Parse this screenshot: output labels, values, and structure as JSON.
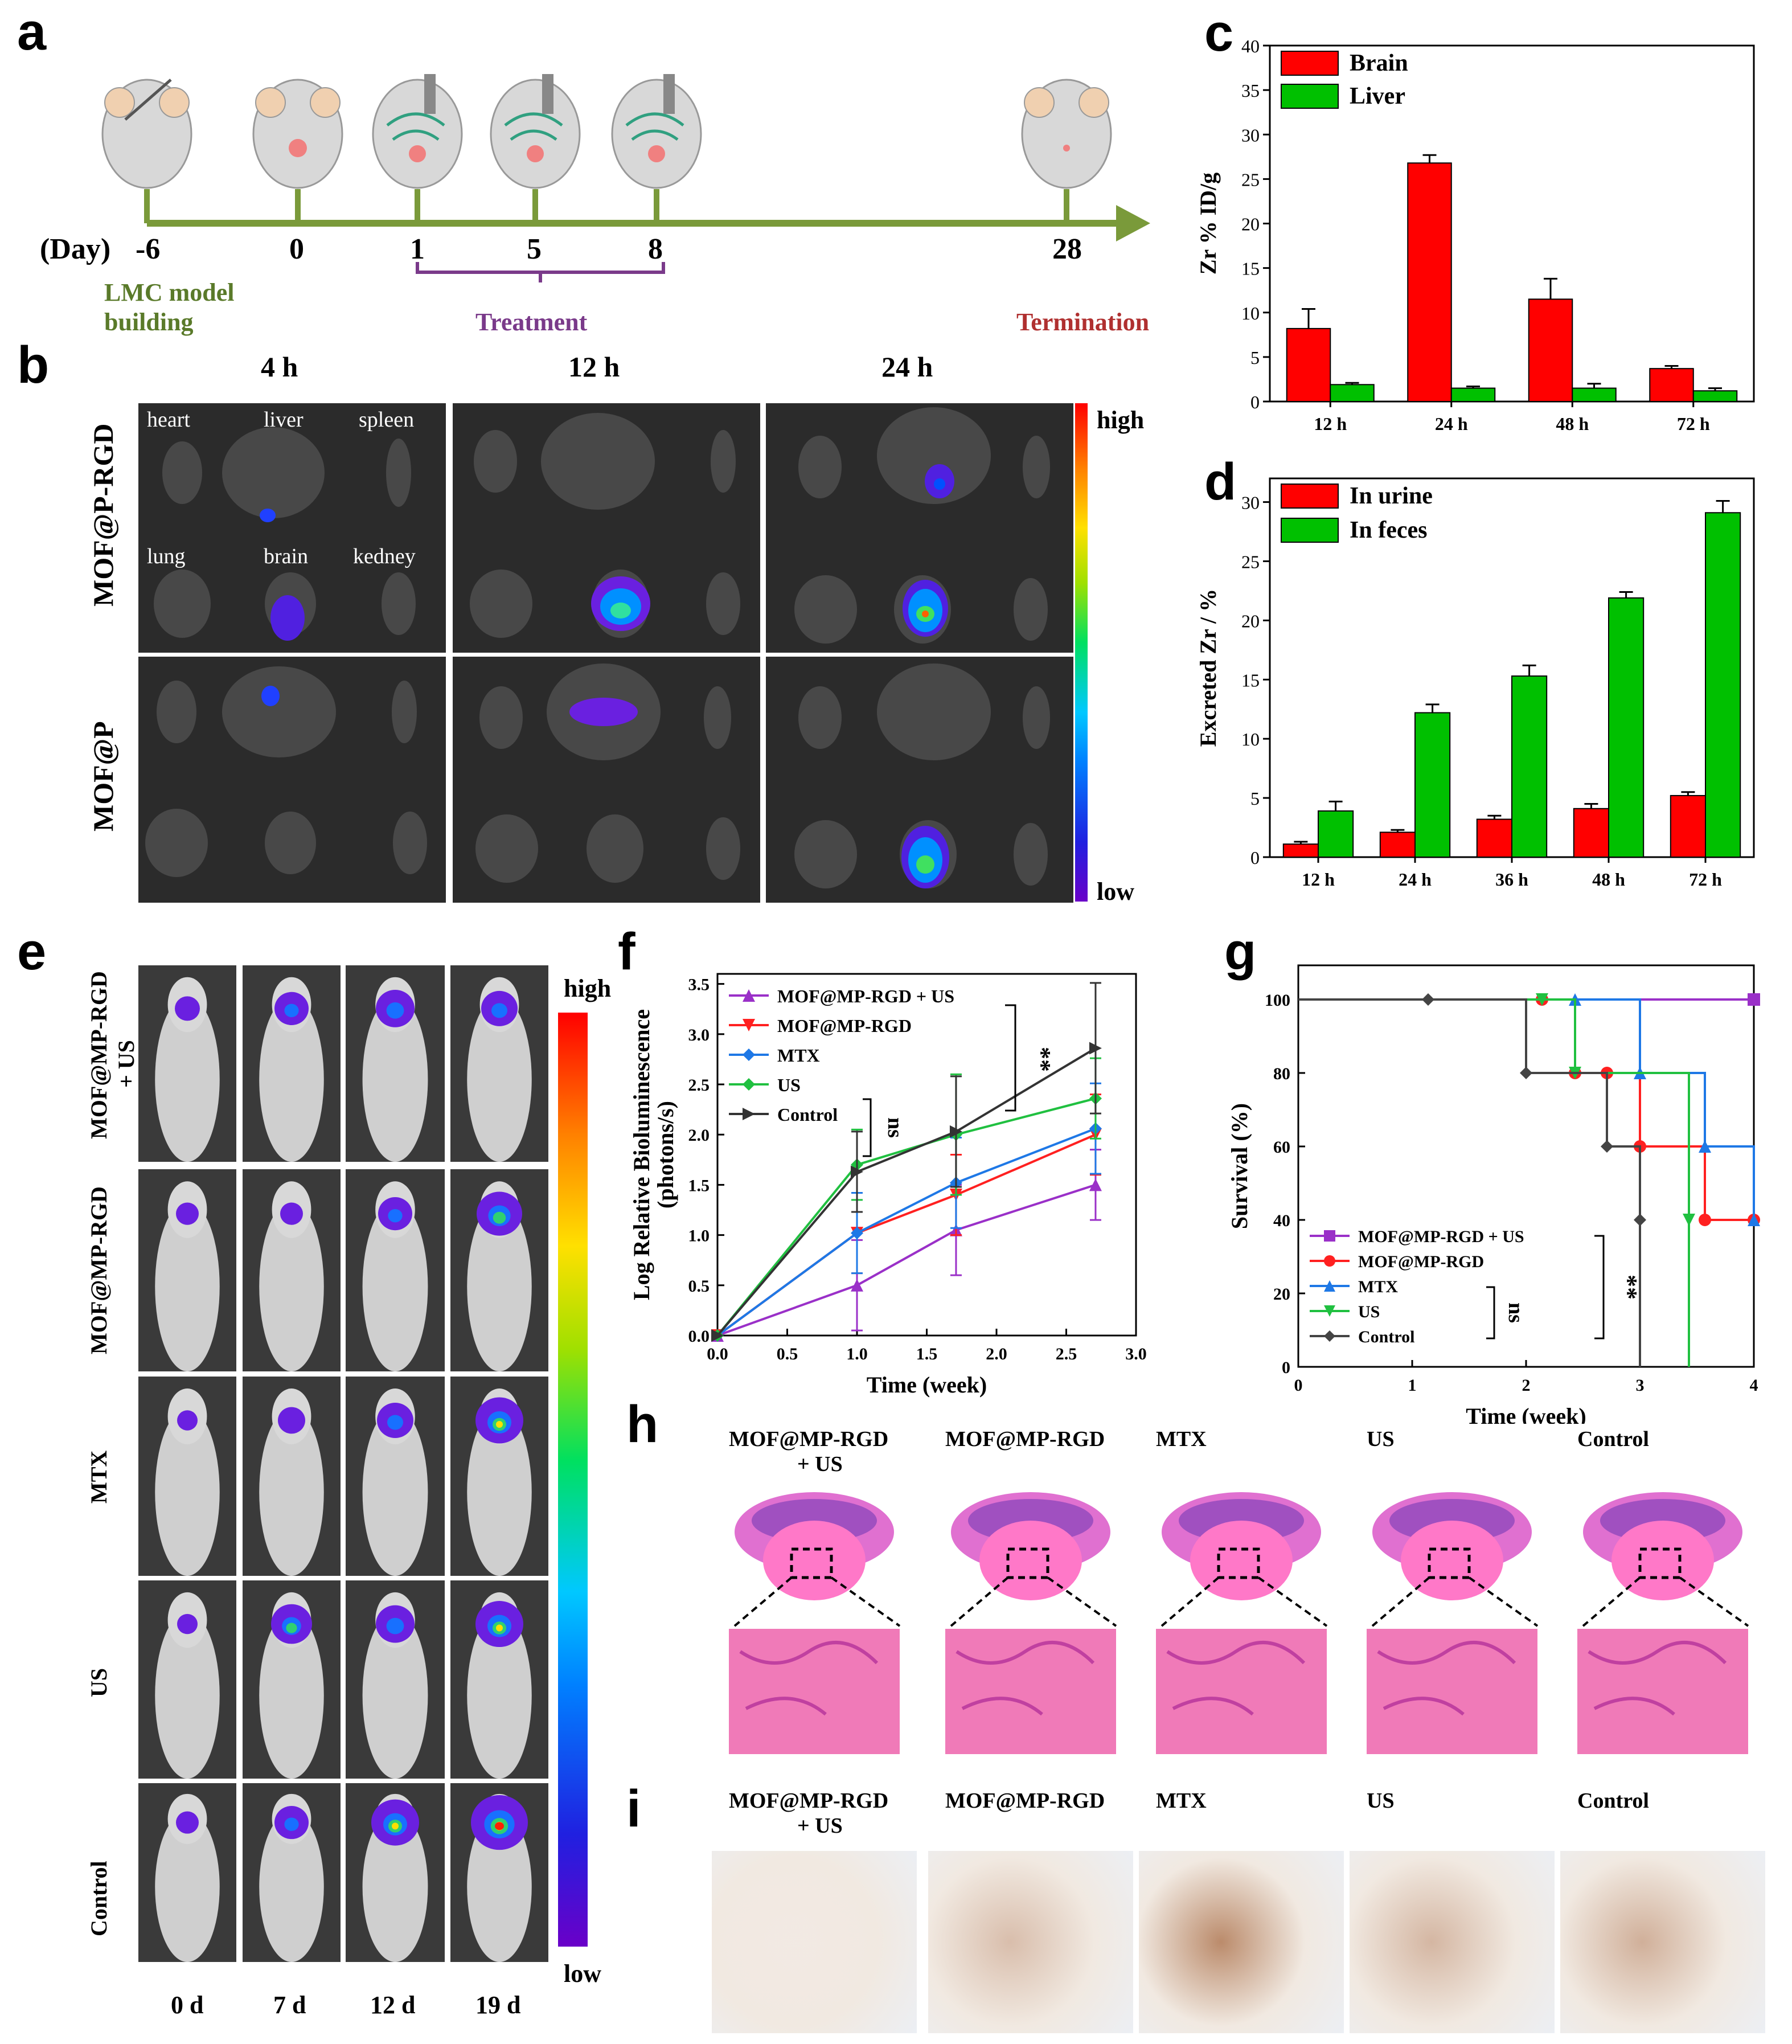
{
  "panels": {
    "a": "a",
    "b": "b",
    "c": "c",
    "d": "d",
    "e": "e",
    "f": "f",
    "g": "g",
    "h": "h",
    "i": "i"
  },
  "timeline": {
    "day_label": "(Day)",
    "days": [
      "-6",
      "0",
      "1",
      "5",
      "8",
      "28"
    ],
    "model_label_1": "LMC model",
    "model_label_2": "building",
    "treatment": "Treatment",
    "termination": "Termination",
    "colors": {
      "axis": "#7a9a3a",
      "model": "#5a7a2a",
      "treatment": "#7a3a8a",
      "termination": "#b03030"
    }
  },
  "imaging_b": {
    "times": [
      "4 h",
      "12 h",
      "24 h"
    ],
    "rows": [
      "MOF@P-RGD",
      "MOF@P"
    ],
    "organs_top": [
      "heart",
      "liver",
      "spleen"
    ],
    "organs_bottom": [
      "lung",
      "brain",
      "kedney"
    ],
    "scale_high": "high",
    "scale_low": "low"
  },
  "imaging_e": {
    "rows": [
      "MOF@MP-RGD + US",
      "MOF@MP-RGD",
      "MTX",
      "US",
      "Control"
    ],
    "row_line1": [
      "MOF@MP-RGD",
      "MOF@MP-RGD",
      "MTX",
      "US",
      "Control"
    ],
    "row_line2": [
      "+ US",
      "",
      "",
      "",
      ""
    ],
    "days": [
      "0 d",
      "7 d",
      "12 d",
      "19 d"
    ],
    "scale_high": "high",
    "scale_low": "low"
  },
  "histology_h": {
    "groups_line1": [
      "MOF@MP-RGD",
      "MOF@MP-RGD",
      "MTX",
      "US",
      "Control"
    ],
    "groups_line2": [
      "+ US",
      "",
      "",
      "",
      ""
    ]
  },
  "histology_i": {
    "groups_line1": [
      "MOF@MP-RGD",
      "MOF@MP-RGD",
      "MTX",
      "US",
      "Control"
    ],
    "groups_line2": [
      "+ US",
      "",
      "",
      "",
      ""
    ]
  },
  "chart_data": [
    {
      "id": "c",
      "type": "bar",
      "title": "",
      "xlabel": "",
      "ylabel": "Zr % ID/g",
      "categories": [
        "12 h",
        "24 h",
        "48 h",
        "72 h"
      ],
      "ylim": [
        0,
        40
      ],
      "yticks": [
        "0",
        "5",
        "10",
        "15",
        "20",
        "25",
        "30",
        "35",
        "40"
      ],
      "series": [
        {
          "name": "Brain",
          "color": "#ff0000",
          "values": [
            8.2,
            26.8,
            11.5,
            3.7
          ],
          "errors": [
            2.2,
            0.9,
            2.3,
            0.3
          ]
        },
        {
          "name": "Liver",
          "color": "#00c000",
          "values": [
            1.9,
            1.5,
            1.5,
            1.2
          ],
          "errors": [
            0.2,
            0.2,
            0.5,
            0.3
          ]
        }
      ],
      "legend": "top-left"
    },
    {
      "id": "d",
      "type": "bar",
      "title": "",
      "xlabel": "",
      "ylabel": "Excreted Zr / %",
      "categories": [
        "12 h",
        "24 h",
        "36 h",
        "48 h",
        "72 h"
      ],
      "ylim": [
        0,
        32
      ],
      "yticks": [
        "0",
        "5",
        "10",
        "15",
        "20",
        "25",
        "30"
      ],
      "series": [
        {
          "name": "In urine",
          "color": "#ff0000",
          "values": [
            1.1,
            2.1,
            3.2,
            4.1,
            5.2
          ],
          "errors": [
            0.2,
            0.2,
            0.3,
            0.4,
            0.3
          ]
        },
        {
          "name": "In feces",
          "color": "#00c000",
          "values": [
            3.9,
            12.2,
            15.3,
            21.9,
            29.1
          ],
          "errors": [
            0.8,
            0.7,
            0.9,
            0.5,
            1.0
          ]
        }
      ],
      "legend": "top-left"
    },
    {
      "id": "f",
      "type": "line",
      "title": "",
      "xlabel": "Time (week)",
      "ylabel_1": "Log Relative Bioluminescence",
      "ylabel_2": "(photons/s)",
      "xlim": [
        0,
        3
      ],
      "ylim": [
        0,
        3.6
      ],
      "xticks": [
        "0.0",
        "0.5",
        "1.0",
        "1.5",
        "2.0",
        "2.5",
        "3.0"
      ],
      "yticks": [
        "0.0",
        "0.5",
        "1.0",
        "1.5",
        "2.0",
        "2.5",
        "3.0",
        "3.5"
      ],
      "x": [
        0,
        1,
        1.71,
        2.71
      ],
      "series": [
        {
          "name": "MOF@MP-RGD + US",
          "color": "#9a30c8",
          "marker": "triangle-up",
          "values": [
            0,
            0.5,
            1.05,
            1.5
          ],
          "errors": [
            0,
            0.45,
            0.45,
            0.35
          ]
        },
        {
          "name": "MOF@MP-RGD",
          "color": "#ff2020",
          "marker": "triangle-down",
          "values": [
            0,
            1.02,
            1.4,
            2.0
          ],
          "errors": [
            0,
            0.4,
            0.4,
            0.4
          ]
        },
        {
          "name": "MTX",
          "color": "#1e78e6",
          "marker": "diamond",
          "values": [
            0,
            1.02,
            1.52,
            2.06
          ],
          "errors": [
            0,
            0.4,
            0.45,
            0.45
          ]
        },
        {
          "name": "US",
          "color": "#20c040",
          "marker": "diamond-left",
          "values": [
            0,
            1.7,
            2.0,
            2.36
          ],
          "errors": [
            0,
            0.35,
            0.6,
            0.4
          ]
        },
        {
          "name": "Control",
          "color": "#333333",
          "marker": "triangle-right",
          "values": [
            0,
            1.63,
            2.03,
            2.86
          ],
          "errors": [
            0,
            0.4,
            0.55,
            0.65
          ]
        }
      ],
      "annotations": [
        "ns",
        "**"
      ]
    },
    {
      "id": "g",
      "type": "line",
      "title": "",
      "xlabel": "Time (week)",
      "ylabel": "Survival (%)",
      "xlim": [
        0,
        4
      ],
      "ylim": [
        0,
        100
      ],
      "xticks": [
        "0",
        "1",
        "2",
        "3",
        "4"
      ],
      "yticks": [
        "0",
        "20",
        "40",
        "60",
        "80",
        "100"
      ],
      "series": [
        {
          "name": "MOF@MP-RGD + US",
          "color": "#9a30c8",
          "marker": "square",
          "x": [
            0,
            4
          ],
          "values": [
            100,
            100
          ]
        },
        {
          "name": "MOF@MP-RGD",
          "color": "#ff2020",
          "marker": "circle",
          "x": [
            0,
            2.14,
            2.43,
            2.71,
            3.0,
            3.57,
            4.0
          ],
          "values": [
            100,
            100,
            80,
            80,
            60,
            40,
            40
          ]
        },
        {
          "name": "MTX",
          "color": "#1e78e6",
          "marker": "triangle-up",
          "x": [
            0,
            2.43,
            3.0,
            3.57,
            4.0
          ],
          "values": [
            100,
            100,
            80,
            60,
            40
          ]
        },
        {
          "name": "US",
          "color": "#20c040",
          "marker": "triangle-down",
          "x": [
            0,
            2.14,
            2.43,
            3.43
          ],
          "values": [
            100,
            100,
            80,
            40
          ]
        },
        {
          "name": "Control",
          "color": "#444444",
          "marker": "diamond",
          "x": [
            0,
            1.14,
            2.0,
            2.71,
            3.0
          ],
          "values": [
            100,
            100,
            80,
            60,
            40
          ]
        }
      ],
      "annotations": [
        "ns",
        "**"
      ]
    }
  ]
}
